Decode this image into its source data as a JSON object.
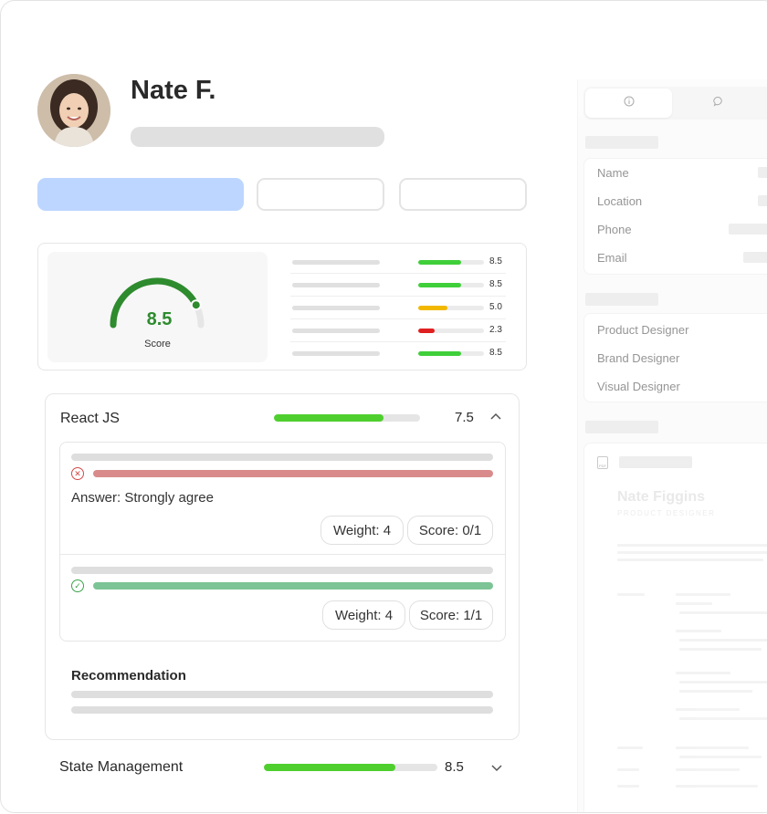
{
  "candidate": {
    "name": "Nate F."
  },
  "score_card": {
    "overall_score": "8.5",
    "overall_fraction": 0.85,
    "score_label": "Score",
    "metrics": [
      {
        "value": "8.5",
        "fraction": 0.65,
        "color": "#3fcf3a"
      },
      {
        "value": "8.5",
        "fraction": 0.65,
        "color": "#3fcf3a"
      },
      {
        "value": "5.0",
        "fraction": 0.45,
        "color": "#f2b800"
      },
      {
        "value": "2.3",
        "fraction": 0.25,
        "color": "#e02020"
      },
      {
        "value": "8.5",
        "fraction": 0.65,
        "color": "#3fcf3a"
      }
    ]
  },
  "skills": {
    "react": {
      "title": "React JS",
      "score": "7.5",
      "fraction": 0.75,
      "questions": [
        {
          "status": "incorrect",
          "bar_color": "#d98b8b",
          "answer": "Answer: Strongly agree",
          "weight": "Weight: 4",
          "score": "Score: 0/1"
        },
        {
          "status": "correct",
          "bar_color": "#7cc495",
          "weight": "Weight: 4",
          "score": "Score: 1/1"
        }
      ],
      "recommendation_title": "Recommendation"
    },
    "state_management": {
      "title": "State Management",
      "score": "8.5",
      "fraction": 0.76
    }
  },
  "side_panel": {
    "tabs": [
      {
        "icon": "info-icon"
      },
      {
        "icon": "chat-bubble-icon"
      }
    ],
    "contact_labels": [
      "Name",
      "Location",
      "Phone",
      "Email"
    ],
    "roles": [
      "Product Designer",
      "Brand Designer",
      "Visual Designer"
    ],
    "resume": {
      "name": "Nate Figgins",
      "subtitle": "PRODUCT DESIGNER",
      "file_icon": "pdf-icon"
    }
  }
}
